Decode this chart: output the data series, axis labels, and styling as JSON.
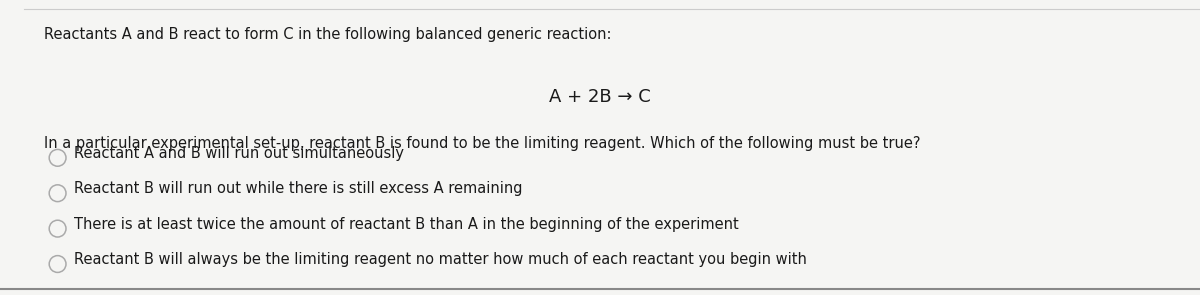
{
  "background_color": "#f5f5f3",
  "title_text": "Reactants A and B react to form C in the following balanced generic reaction:",
  "equation": "A + 2B → C",
  "intro_text": "In a particular experimental set-up, reactant B is found to be the limiting reagent. Which of the following must be true?",
  "options": [
    "Reactant A and B will run out simultaneously",
    "Reactant B will run out while there is still excess A remaining",
    "There is at least twice the amount of reactant B than A in the beginning of the experiment",
    "Reactant B will always be the limiting reagent no matter how much of each reactant you begin with"
  ],
  "text_color": "#1a1a1a",
  "circle_color": "#aaaaaa",
  "title_fontsize": 10.5,
  "option_fontsize": 10.5,
  "equation_fontsize": 13,
  "top_border_color": "#cccccc",
  "bottom_border_color": "#888888"
}
